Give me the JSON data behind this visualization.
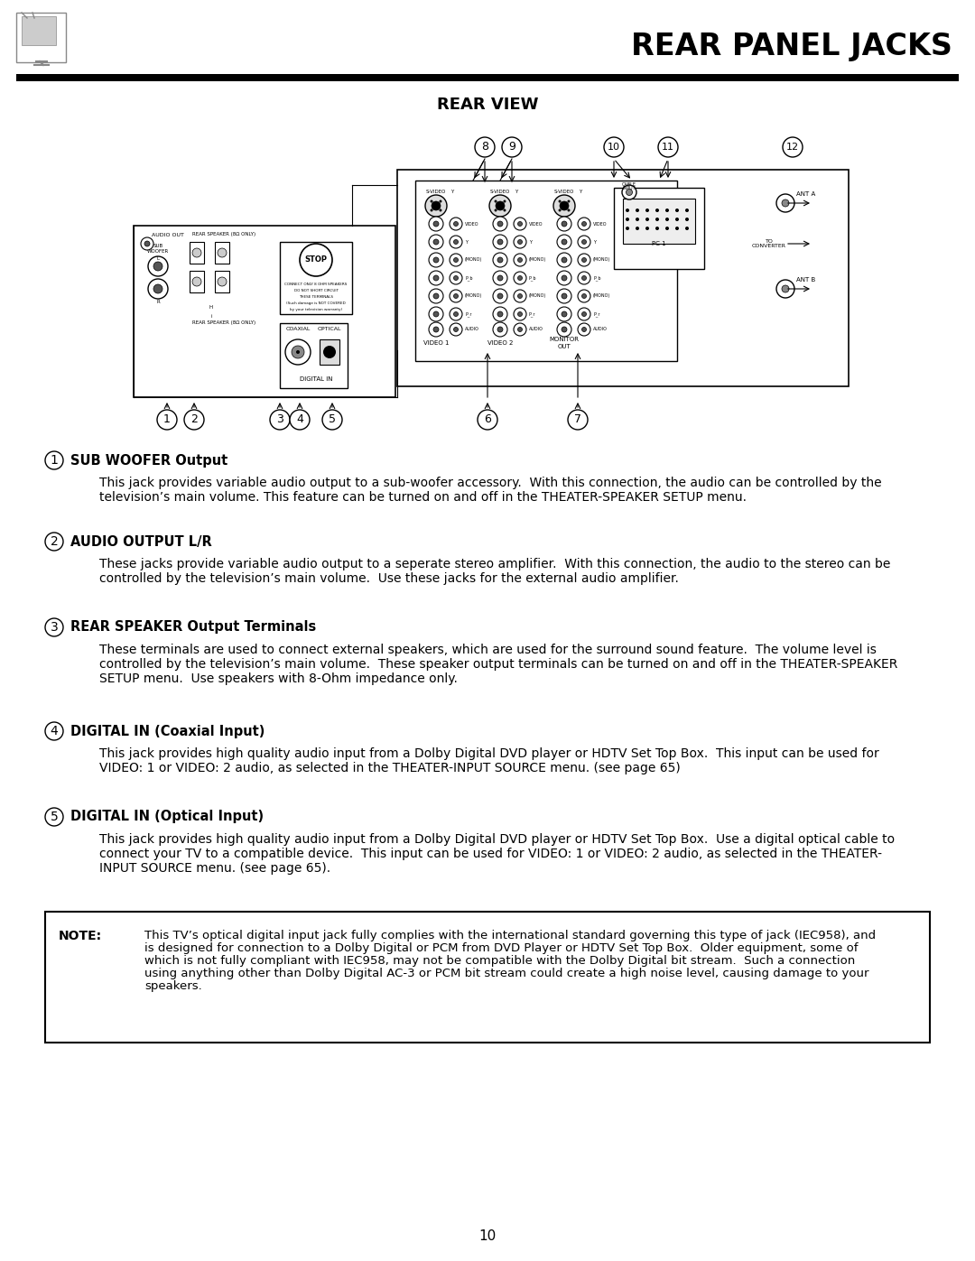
{
  "title": "REAR PANEL JACKS",
  "subtitle": "REAR VIEW",
  "page_number": "10",
  "background_color": "#ffffff",
  "text_color": "#000000",
  "title_fontsize": 24,
  "subtitle_fontsize": 13,
  "body_fontsize": 10,
  "sections": [
    {
      "number": "1",
      "heading": "SUB WOOFER Output",
      "body": "This jack provides variable audio output to a sub-woofer accessory.  With this connection, the audio can be controlled by the\ntelevision’s main volume. This feature can be turned on and off in the THEATER-SPEAKER SETUP menu."
    },
    {
      "number": "2",
      "heading": "AUDIO OUTPUT L/R",
      "body": "These jacks provide variable audio output to a seperate stereo amplifier.  With this connection, the audio to the stereo can be\ncontrolled by the television’s main volume.  Use these jacks for the external audio amplifier."
    },
    {
      "number": "3",
      "heading": "REAR SPEAKER Output Terminals",
      "body": "These terminals are used to connect external speakers, which are used for the surround sound feature.  The volume level is\ncontrolled by the television’s main volume.  These speaker output terminals can be turned on and off in the THEATER-SPEAKER\nSETUP menu.  Use speakers with 8-Ohm impedance only."
    },
    {
      "number": "4",
      "heading": "DIGITAL IN (Coaxial Input)",
      "body": "This jack provides high quality audio input from a Dolby Digital DVD player or HDTV Set Top Box.  This input can be used for\nVIDEO: 1 or VIDEO: 2 audio, as selected in the THEATER-INPUT SOURCE menu. (see page 65)"
    },
    {
      "number": "5",
      "heading": "DIGITAL IN (Optical Input)",
      "body": "This jack provides high quality audio input from a Dolby Digital DVD player or HDTV Set Top Box.  Use a digital optical cable to\nconnect your TV to a compatible device.  This input can be used for VIDEO: 1 or VIDEO: 2 audio, as selected in the THEATER-\nINPUT SOURCE menu. (see page 65)."
    }
  ],
  "note_label": "NOTE:",
  "note_text": "This TV’s optical digital input jack fully complies with the international standard governing this type of jack (IEC958), and\nis designed for connection to a Dolby Digital or PCM from DVD Player or HDTV Set Top Box.  Older equipment, some of\nwhich is not fully compliant with IEC958, may not be compatible with the Dolby Digital bit stream.  Such a connection\nusing anything other than Dolby Digital AC-3 or PCM bit stream could create a high noise level, causing damage to your\nspeakers."
}
